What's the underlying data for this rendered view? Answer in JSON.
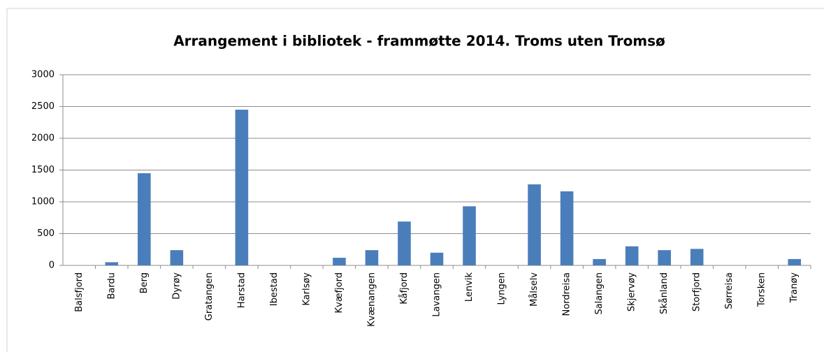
{
  "chart_data": {
    "type": "bar",
    "title": "Arrangement  i bibliotek - frammøtte 2014. Troms uten Tromsø",
    "categories": [
      "Balsfjord",
      "Bardu",
      "Berg",
      "Dyrøy",
      "Gratangen",
      "Harstad",
      "Ibestad",
      "Karlsøy",
      "Kvæfjord",
      "Kvænangen",
      "Kåfjord",
      "Lavangen",
      "Lenvik",
      "Lyngen",
      "Målselv",
      "Nordreisa",
      "Salangen",
      "Skjervøy",
      "Skånland",
      "Storfjord",
      "Sørreisa",
      "Torsken",
      "Tranøy"
    ],
    "values": [
      0,
      50,
      1450,
      240,
      0,
      2450,
      0,
      0,
      120,
      240,
      690,
      200,
      930,
      0,
      1275,
      1165,
      100,
      300,
      240,
      260,
      0,
      0,
      100
    ],
    "color": "#4a7ebb",
    "ylim": [
      0,
      3000
    ],
    "yticks": [
      0,
      500,
      1000,
      1500,
      2000,
      2500,
      3000
    ],
    "grid": true
  }
}
